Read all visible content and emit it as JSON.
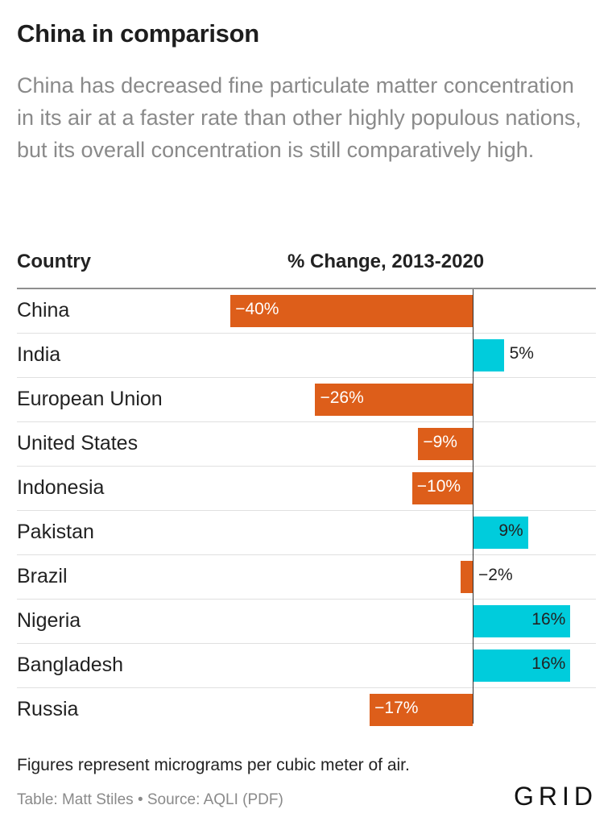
{
  "header": {
    "title": "China in comparison",
    "subtitle": "China has decreased fine particulate matter concentration in its air at a faster rate than other highly populous nations, but its overall concentration is still comparatively high."
  },
  "table": {
    "col_country": "Country",
    "col_change": "% Change, 2013-2020"
  },
  "chart_data": {
    "type": "bar",
    "orientation": "horizontal",
    "categories": [
      "China",
      "India",
      "European Union",
      "United States",
      "Indonesia",
      "Pakistan",
      "Brazil",
      "Nigeria",
      "Bangladesh",
      "Russia"
    ],
    "values": [
      -40,
      5,
      -26,
      -9,
      -10,
      9,
      -2,
      16,
      16,
      -17
    ],
    "labels": [
      "−40%",
      "5%",
      "−26%",
      "−9%",
      "−10%",
      "9%",
      "−2%",
      "16%",
      "16%",
      "−17%"
    ],
    "colors": {
      "negative": "#dd5e1a",
      "positive": "#00ccdc"
    },
    "xlim": [
      -40,
      16
    ]
  },
  "footer": {
    "note": "Figures represent micrograms per cubic meter of air.",
    "source": "Table: Matt Stiles • Source: AQLI (PDF)",
    "logo": "GRID"
  }
}
